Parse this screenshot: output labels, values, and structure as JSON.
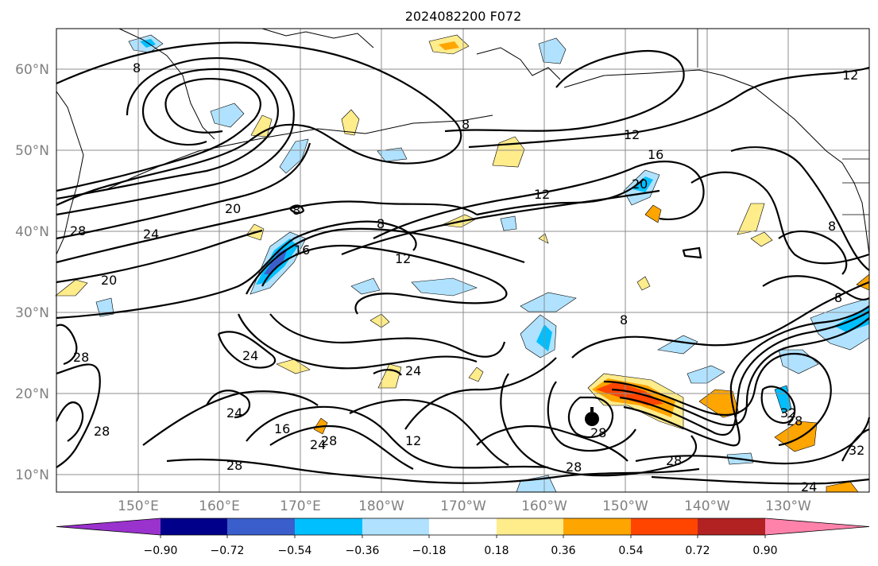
{
  "title": "2024082200 F072",
  "lat_labels": [
    "60°N",
    "50°N",
    "40°N",
    "30°N",
    "20°N",
    "10°N"
  ],
  "lon_labels": [
    "150°E",
    "160°E",
    "170°E",
    "180°W",
    "170°W",
    "160°W",
    "150°W",
    "140°W",
    "130°W"
  ],
  "colorbar": {
    "ticks": [
      "−0.90",
      "−0.72",
      "−0.54",
      "−0.36",
      "−0.18",
      "0.18",
      "0.36",
      "0.54",
      "0.72",
      "0.90"
    ],
    "colors": [
      "#9a32cd",
      "#00008b",
      "#3a5fcd",
      "#00bfff",
      "#b0e2ff",
      "#ffffff",
      "#ffec8b",
      "#ffa500",
      "#ff4500",
      "#b22222",
      "#ff82ab"
    ]
  },
  "contour_labels": [
    "8",
    "8",
    "8",
    "8",
    "8",
    "8",
    "8",
    "12",
    "12",
    "12",
    "12",
    "12",
    "16",
    "16",
    "16",
    "20",
    "20",
    "20",
    "24",
    "24",
    "24",
    "24",
    "24",
    "24",
    "28",
    "28",
    "28",
    "28",
    "28",
    "28",
    "28",
    "28",
    "28",
    "32",
    "32"
  ],
  "shading_colors": {
    "light_blue": "#b0e2ff",
    "blue": "#00bfff",
    "dark_blue": "#3a5fcd",
    "yellow": "#ffec8b",
    "orange": "#ffa500",
    "red": "#ff4500"
  }
}
